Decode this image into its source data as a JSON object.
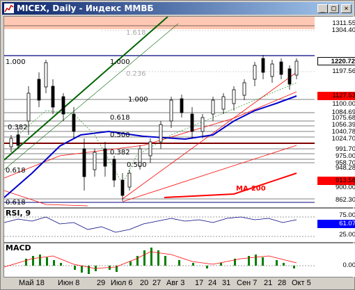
{
  "window": {
    "title": "MICEX, Daily - Индекс ММВБ",
    "buttons": [
      "_",
      "□",
      "×"
    ]
  },
  "price_scale": [
    {
      "text": "1311.55",
      "fg": "#000000",
      "bg": "#ffffff"
    },
    {
      "text": "1304.40",
      "fg": "#000000",
      "bg": "#ffffff"
    },
    {
      "text": "1220.72",
      "fg": "#000000",
      "bg": "#ffffff"
    },
    {
      "text": "1197.56",
      "fg": "#000000",
      "bg": "#ffffff"
    },
    {
      "text": "1127.53",
      "fg": "#000000",
      "bg": "#ff0000"
    },
    {
      "text": "1100.00",
      "fg": "#000000",
      "bg": "#ffffff"
    },
    {
      "text": "1084.69",
      "fg": "#000000",
      "bg": "#ffffff"
    },
    {
      "text": "1075.68",
      "fg": "#000000",
      "bg": "#ffffff"
    },
    {
      "text": "1056.39",
      "fg": "#000000",
      "bg": "#ffffff"
    },
    {
      "text": "1040.78",
      "fg": "#000000",
      "bg": "#ffffff"
    },
    {
      "text": "1024.70",
      "fg": "#000000",
      "bg": "#ffffff"
    },
    {
      "text": "991.70",
      "fg": "#000000",
      "bg": "#ffffff"
    },
    {
      "text": "975.00",
      "fg": "#000000",
      "bg": "#ffffff"
    },
    {
      "text": "958.70",
      "fg": "#000000",
      "bg": "#ffffff"
    },
    {
      "text": "948.28",
      "fg": "#000000",
      "bg": "#ffffff"
    },
    {
      "text": "913.56",
      "fg": "#000000",
      "bg": "#ff0000"
    },
    {
      "text": "900.00",
      "fg": "#000000",
      "bg": "#ffffff"
    },
    {
      "text": "862.30",
      "fg": "#000000",
      "bg": "#ffffff"
    }
  ],
  "fib_labels": [
    "1.618",
    "1.000",
    "1.000",
    "0.236",
    "1.000",
    "0.618",
    "0.500",
    "0.382",
    "0.618",
    "0.500",
    "0.382",
    "0.618"
  ],
  "ma_label": "MA-200",
  "rsi": {
    "label": "RSI, 9",
    "scale": [
      {
        "text": "75.00",
        "fg": "#000000",
        "bg": "#ffffff"
      },
      {
        "text": "61.07",
        "fg": "#000000",
        "bg": "#0000ff"
      },
      {
        "text": "25.00",
        "fg": "#000000",
        "bg": "#ffffff"
      }
    ]
  },
  "macd": {
    "label": "MACD",
    "scale": [
      {
        "text": "0.00",
        "fg": "#000000",
        "bg": "#ffffff"
      }
    ]
  },
  "x_axis": [
    "Май 18",
    "Июн 8",
    "29",
    "Июл 6",
    "20",
    "27",
    "Авг 3",
    "17",
    "24",
    "31",
    "Сен 7",
    "21",
    "28",
    "Окт 5"
  ]
}
